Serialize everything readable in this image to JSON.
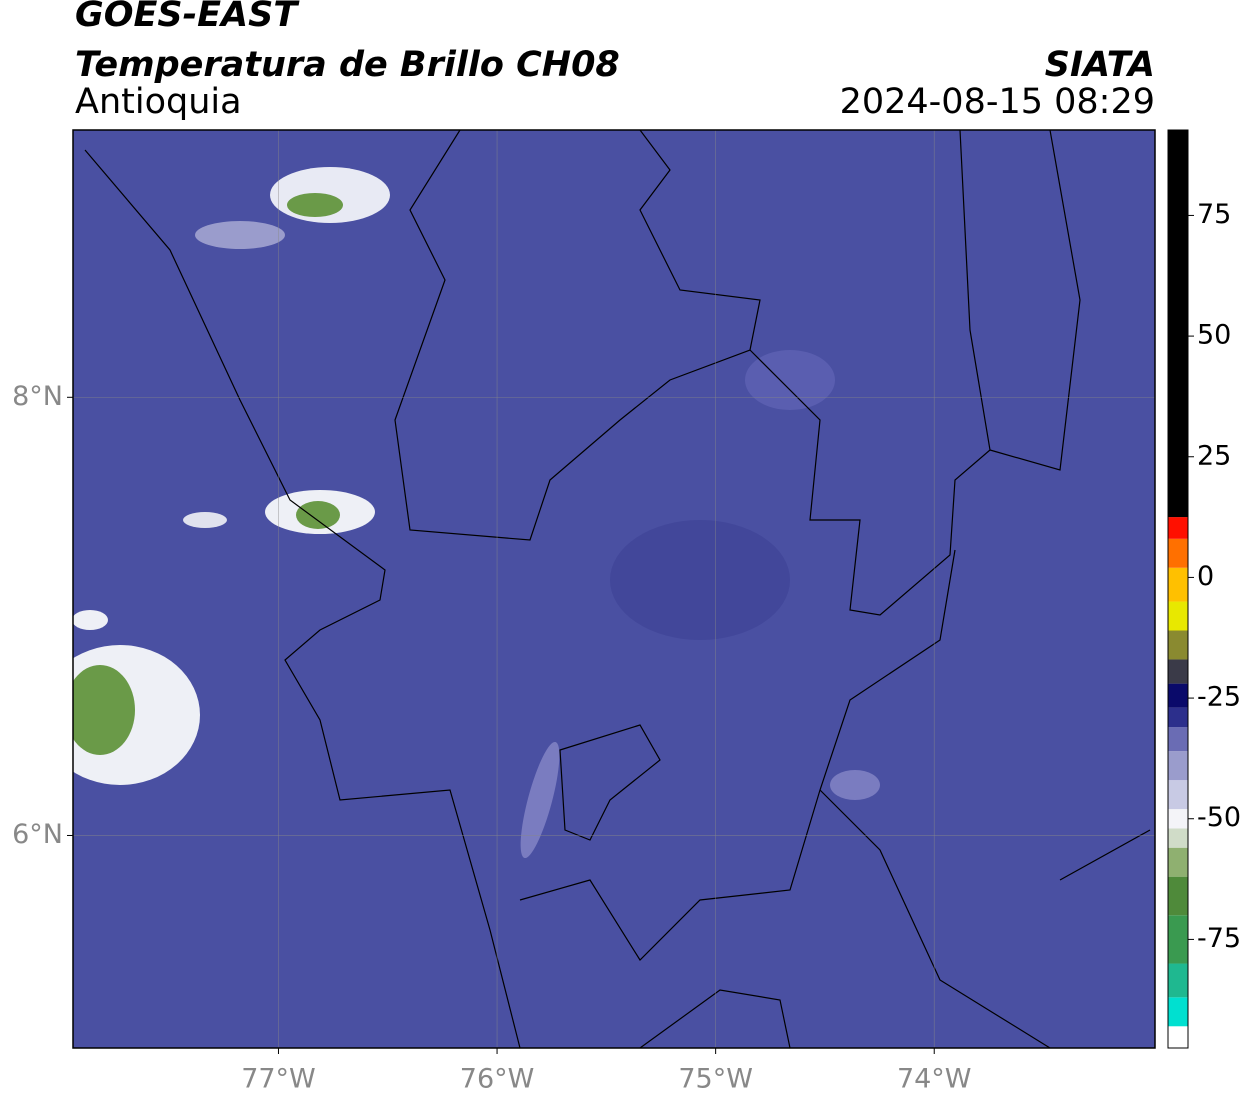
{
  "header": {
    "title": "GOES-EAST",
    "subtitle": "Temperatura de Brillo CH08",
    "region": "Antioquia",
    "source": "SIATA",
    "datetime": "2024-08-15 08:29"
  },
  "map": {
    "xlim": [
      -77.94,
      -72.99
    ],
    "ylim": [
      5.03,
      9.22
    ],
    "lonticks": [
      {
        "value": -77,
        "label": "77°W"
      },
      {
        "value": -76,
        "label": "76°W"
      },
      {
        "value": -75,
        "label": "75°W"
      },
      {
        "value": -74,
        "label": "74°W"
      }
    ],
    "latticks": [
      {
        "value": 6,
        "label": "6°N"
      },
      {
        "value": 8,
        "label": "8°N"
      }
    ],
    "grid": true
  },
  "colorbar": {
    "clim": [
      -97.5,
      92.7
    ],
    "ticks": [
      75,
      50,
      25,
      0,
      -25,
      -50,
      -75
    ],
    "levels": [
      -97.5,
      -93,
      -87,
      -80,
      -70,
      -62,
      -56,
      -52,
      -48,
      -42,
      -36,
      -31,
      -27,
      -22,
      -17,
      -11,
      -5,
      2,
      8,
      12.5,
      92.7
    ],
    "colors": [
      "#ffffff",
      "#00e0d0",
      "#1fb890",
      "#3a9a50",
      "#4f8a3a",
      "#8fb070",
      "#d0dcc8",
      "#f4f4f8",
      "#c8cae4",
      "#9a9ccc",
      "#6a6cb4",
      "#2c2f8c",
      "#0a0a6a",
      "#3a3a48",
      "#8a8a30",
      "#e8e800",
      "#ffc000",
      "#ff7000",
      "#ff1000",
      "#000000"
    ]
  }
}
